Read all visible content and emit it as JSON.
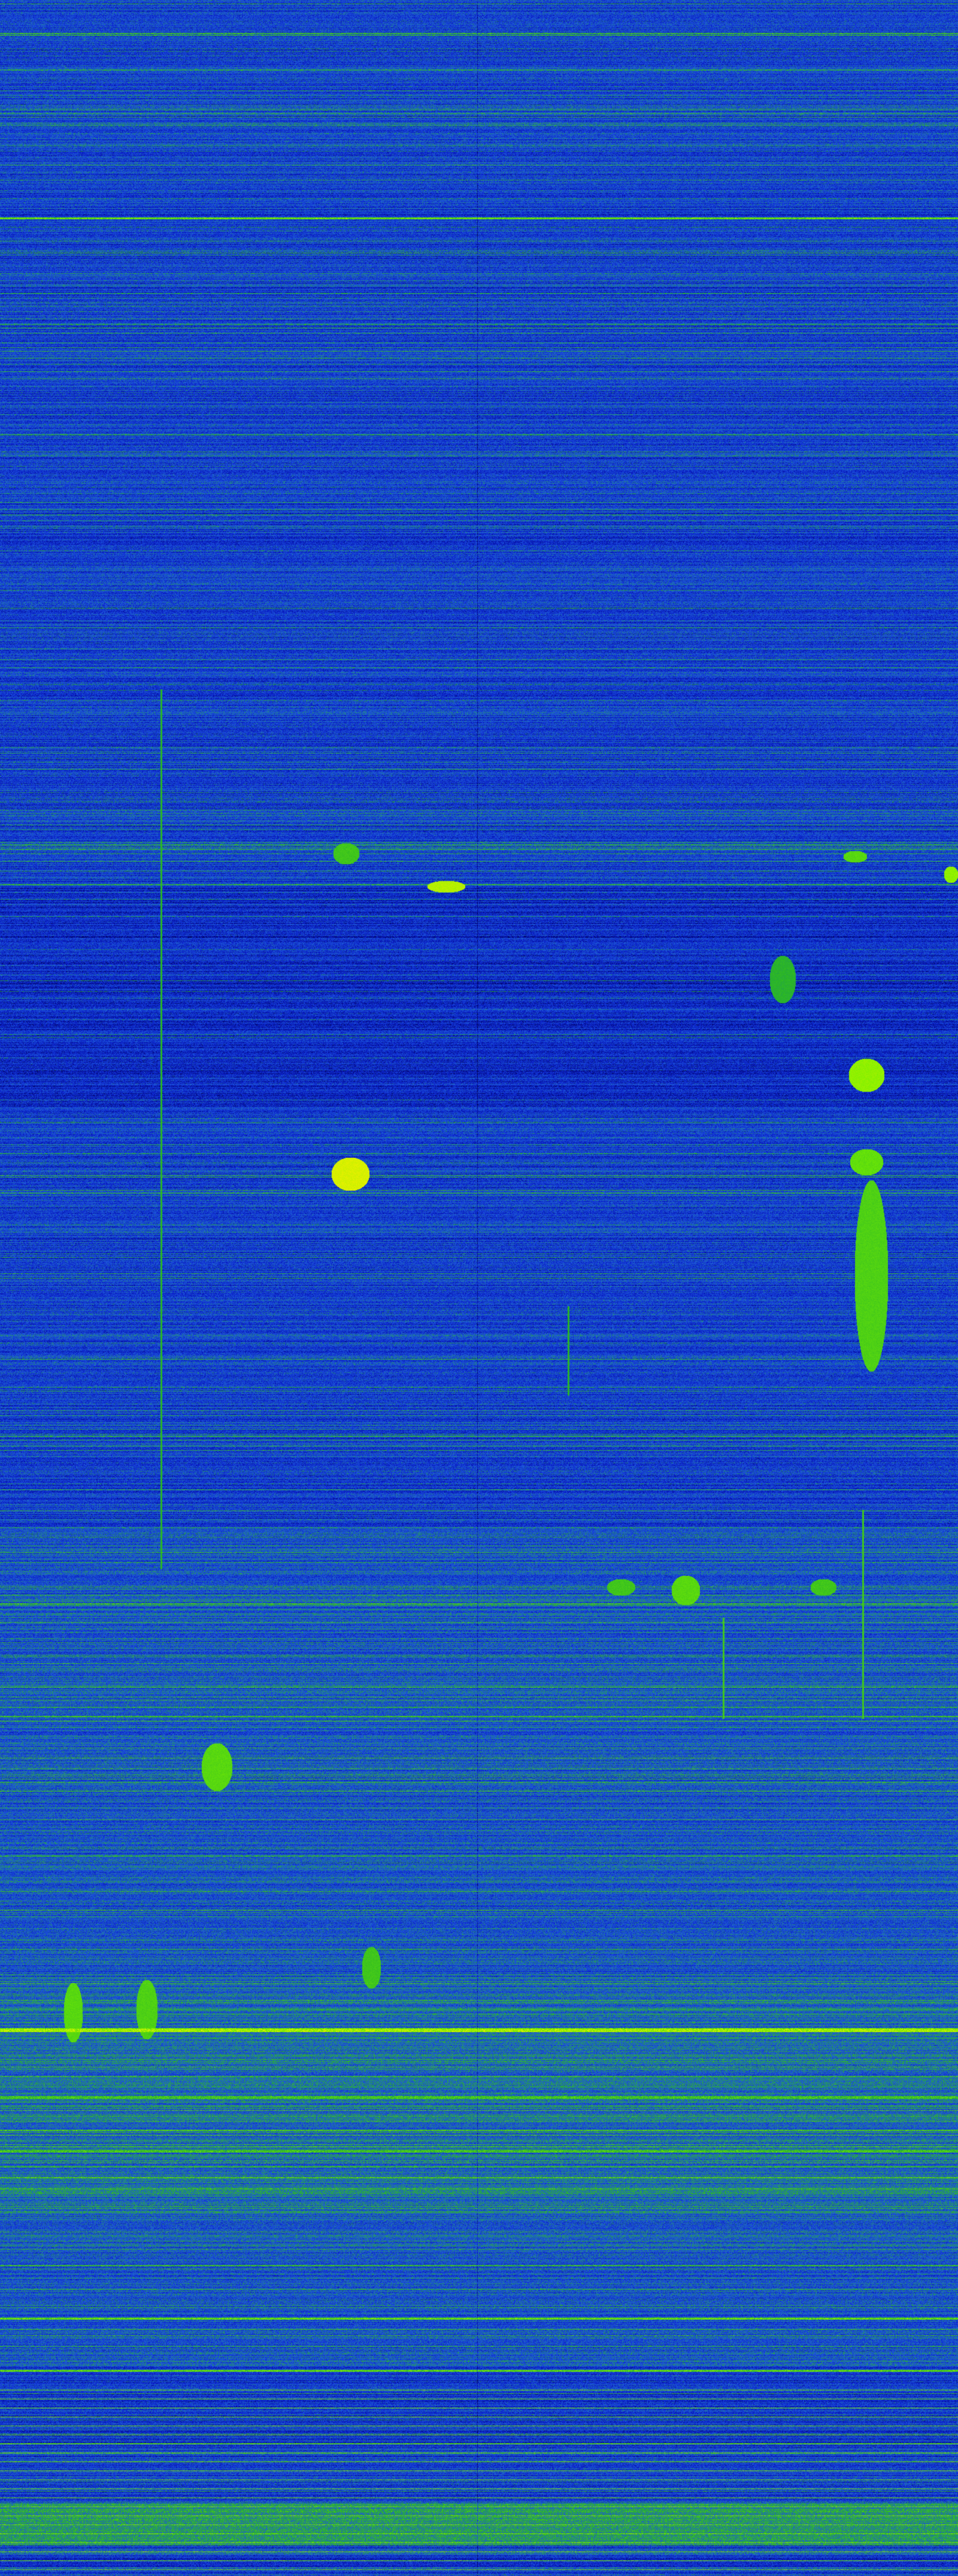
{
  "image": {
    "kind": "spectrogram-waterfall",
    "colormap": [
      "#000050",
      "#0a1ec8",
      "#1e5adc",
      "#28b428",
      "#78f000",
      "#f0f000",
      "#f03c00"
    ]
  }
}
